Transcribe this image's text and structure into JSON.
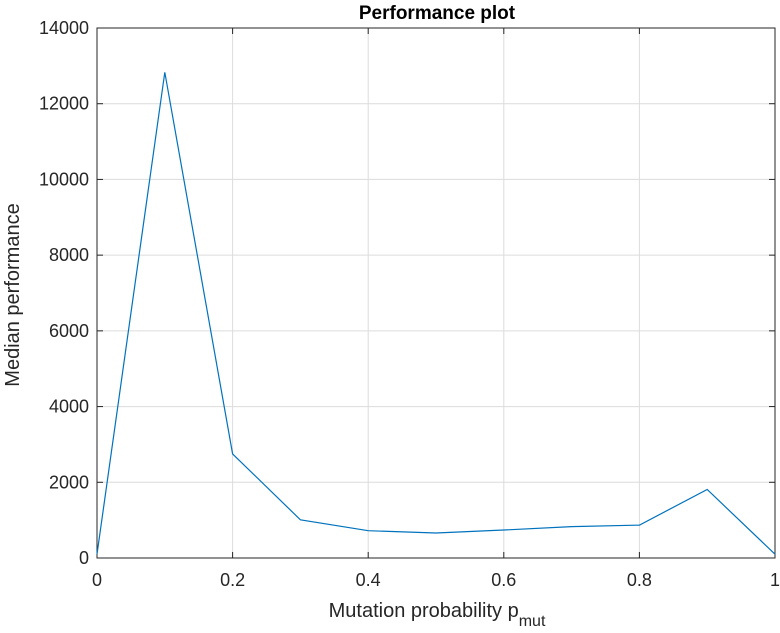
{
  "chart_data": {
    "type": "line",
    "title": "Performance plot",
    "xlabel": "Mutation probability p",
    "xlabel_subscript": "mut",
    "ylabel": "Median performance",
    "xlim": [
      0,
      1
    ],
    "ylim": [
      0,
      14000
    ],
    "grid": true,
    "x_ticks": [
      0,
      0.2,
      0.4,
      0.6,
      0.8,
      1
    ],
    "x_tick_labels": [
      "0",
      "0.2",
      "0.4",
      "0.6",
      "0.8",
      "1"
    ],
    "y_ticks": [
      0,
      2000,
      4000,
      6000,
      8000,
      10000,
      12000,
      14000
    ],
    "y_tick_labels": [
      "0",
      "2000",
      "4000",
      "6000",
      "8000",
      "10000",
      "12000",
      "14000"
    ],
    "series": [
      {
        "color": "#0072BD",
        "x": [
          0,
          0.1,
          0.2,
          0.3,
          0.4,
          0.5,
          0.6,
          0.7,
          0.8,
          0.9,
          1.0
        ],
        "values": [
          100,
          12830,
          2750,
          1010,
          720,
          660,
          740,
          830,
          870,
          1810,
          100
        ]
      }
    ]
  }
}
